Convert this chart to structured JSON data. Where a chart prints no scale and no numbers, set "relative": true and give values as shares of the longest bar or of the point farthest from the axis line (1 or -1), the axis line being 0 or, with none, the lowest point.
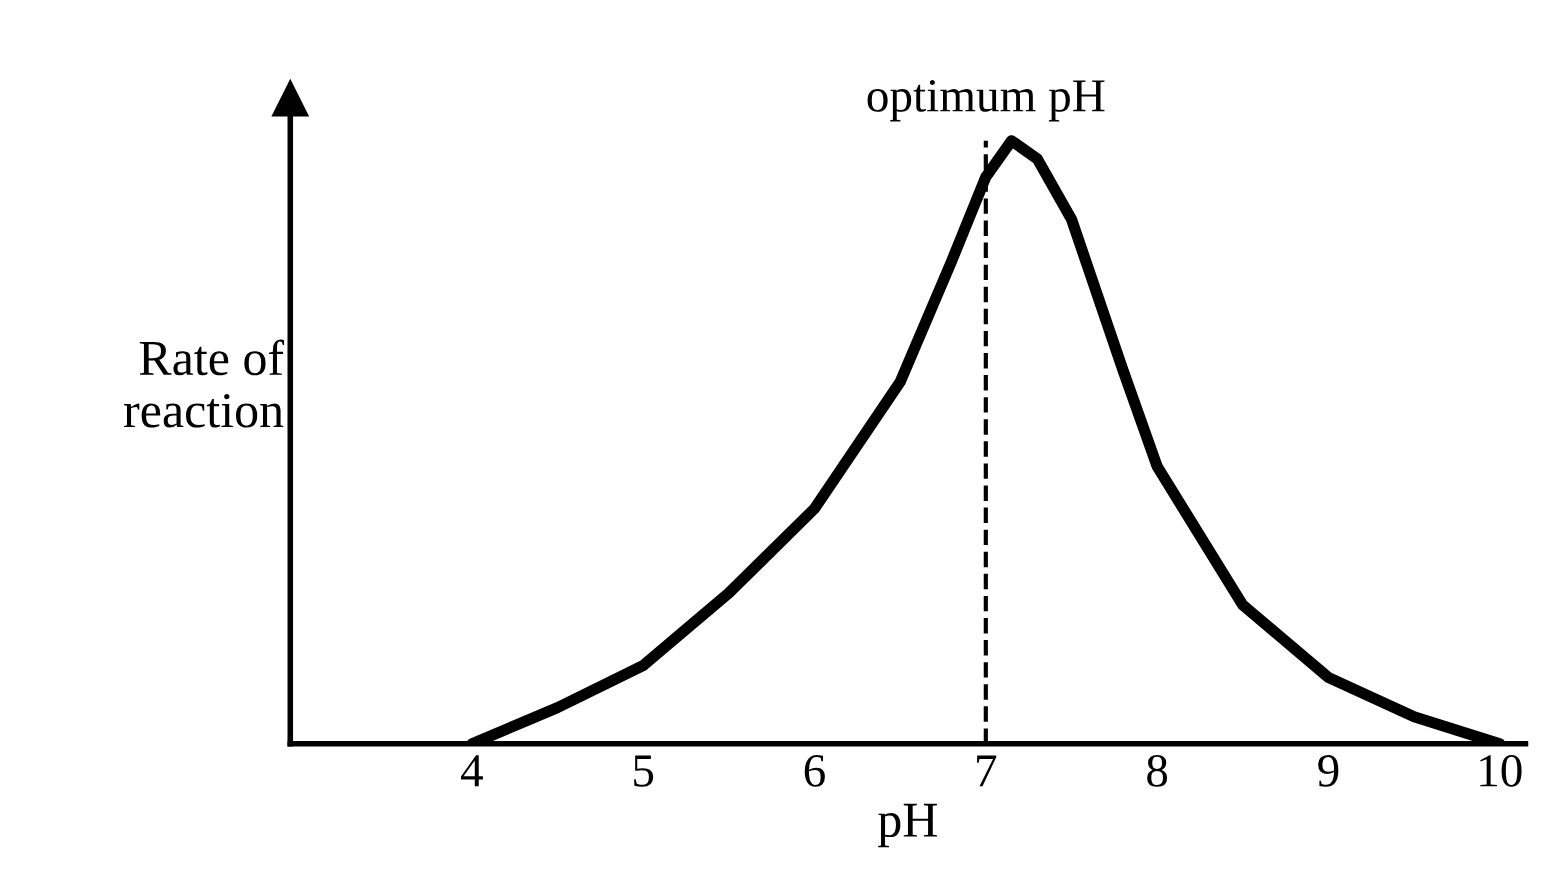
{
  "chart_data": {
    "type": "line",
    "relative": true,
    "xlabel": "pH",
    "ylabel": "Rate of\nreaction",
    "x": [
      4,
      4.5,
      5,
      5.5,
      6,
      6.5,
      6.8,
      7,
      7.15,
      7.3,
      7.5,
      7.8,
      8,
      8.5,
      9,
      9.5,
      10
    ],
    "series": [
      {
        "color": "#000000",
        "values": [
          0,
          0.06,
          0.13,
          0.25,
          0.39,
          0.6,
          0.8,
          0.94,
          1,
          0.97,
          0.87,
          0.62,
          0.46,
          0.23,
          0.11,
          0.045,
          0
        ]
      }
    ],
    "xlim": [
      2.94,
      10.15
    ],
    "xticks": [
      4,
      5,
      6,
      7,
      8,
      9,
      10
    ],
    "ref_lines": [
      {
        "axis": "x",
        "value": 7,
        "label": "optimum pH",
        "line_style": "dashed",
        "color": "#000000"
      }
    ],
    "tick_labels": "x",
    "grid": false,
    "legend": false,
    "marker": "none",
    "line_style": "solid"
  }
}
